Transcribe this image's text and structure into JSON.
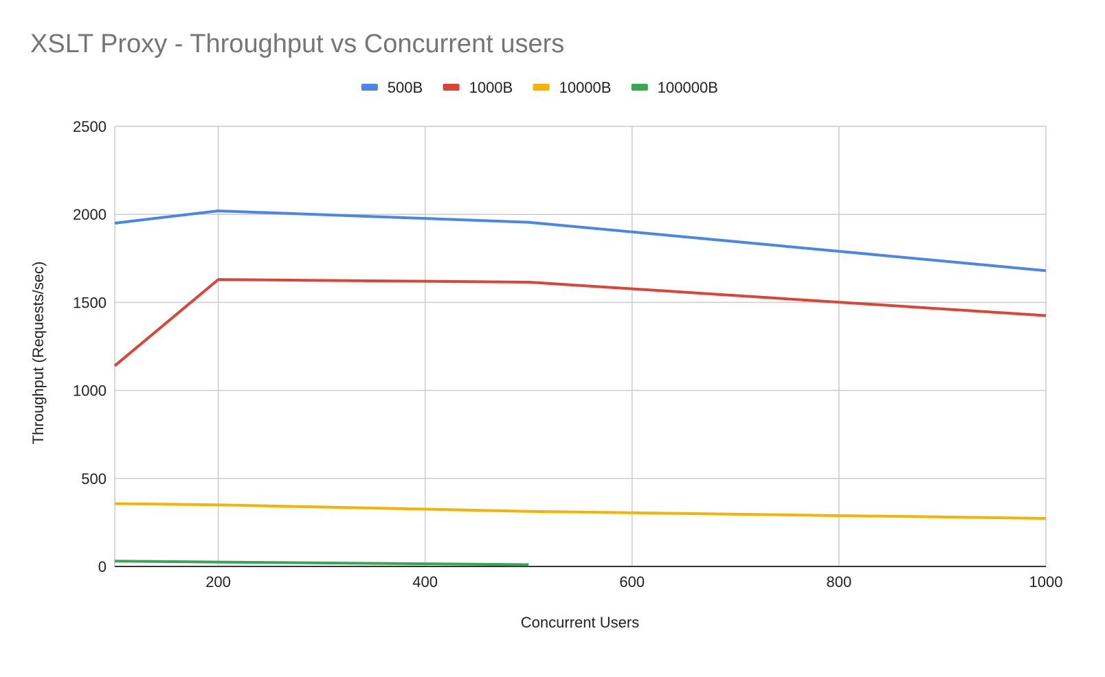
{
  "chart_data": {
    "type": "line",
    "title": "XSLT Proxy - Throughput vs Concurrent users",
    "xlabel": "Concurrent Users",
    "ylabel": "Throughput (Requests/sec)",
    "xlim": [
      100,
      1000
    ],
    "ylim": [
      0,
      2500
    ],
    "x_ticks": [
      200,
      400,
      600,
      800,
      1000
    ],
    "y_ticks": [
      0,
      500,
      1000,
      1500,
      2000,
      2500
    ],
    "grid": true,
    "legend_position": "top",
    "series": [
      {
        "name": "500B",
        "color": "#4a86e8",
        "points": [
          [
            100,
            1950
          ],
          [
            200,
            2020
          ],
          [
            500,
            1955
          ],
          [
            1000,
            1680
          ]
        ]
      },
      {
        "name": "1000B",
        "color": "#db4437",
        "points": [
          [
            100,
            1140
          ],
          [
            200,
            1630
          ],
          [
            500,
            1615
          ],
          [
            1000,
            1425
          ]
        ]
      },
      {
        "name": "10000B",
        "color": "#f4b400",
        "points": [
          [
            100,
            357
          ],
          [
            200,
            350
          ],
          [
            500,
            313
          ],
          [
            1000,
            273
          ]
        ]
      },
      {
        "name": "100000B",
        "color": "#34a853",
        "points": [
          [
            100,
            30
          ],
          [
            200,
            25
          ],
          [
            500,
            10
          ]
        ]
      }
    ]
  }
}
